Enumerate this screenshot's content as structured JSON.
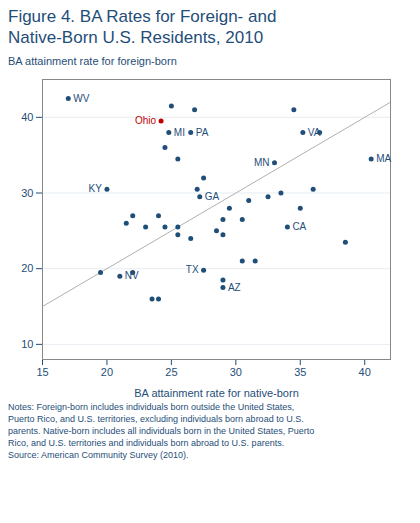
{
  "chart_data": {
    "type": "scatter",
    "title": "Figure 4. BA Rates for Foreign- and\nNative-Born U.S. Residents, 2010",
    "xlabel": "BA attainment rate for native-born",
    "ylabel": "BA attainment rate for foreign-born",
    "notes": "Notes: Foreign-born includes individuals born outside the United States,\nPuerto Rico, and U.S. territories, excluding individuals born abroad to U.S.\nparents. Native-born includes all individuals born in the United States, Puerto\nRico, and U.S. territories and individuals born abroad to U.S. parents.\nSource: American Community Survey (2010).",
    "xlim": [
      15,
      42
    ],
    "ylim": [
      8,
      45
    ],
    "xticks": [
      15,
      20,
      25,
      30,
      35,
      40
    ],
    "yticks": [
      10,
      20,
      30,
      40
    ],
    "grid": "y",
    "reference_line": {
      "x": [
        15,
        42
      ],
      "y": [
        15,
        42
      ],
      "color": "#b0b0b0"
    },
    "x": [
      17.0,
      24.2,
      24.8,
      26.5,
      20.0,
      21.0,
      27.2,
      27.5,
      29.0,
      33.0,
      34.0,
      35.2,
      40.5,
      25.0,
      26.8,
      34.5,
      22.0,
      24.0,
      21.5,
      23.0,
      24.5,
      25.5,
      24.5,
      25.5,
      25.5,
      26.5,
      27.5,
      28.5,
      29.0,
      29.0,
      29.5,
      30.5,
      30.5,
      31.0,
      31.5,
      33.5,
      35.0,
      36.0,
      38.5,
      19.5,
      22.0,
      23.5,
      24.0,
      29.0,
      32.5,
      36.5,
      27.0
    ],
    "values": [
      42.5,
      39.5,
      38.0,
      38.0,
      30.5,
      19.0,
      29.5,
      19.8,
      17.5,
      34.0,
      25.5,
      38.0,
      34.5,
      41.5,
      41.0,
      41.0,
      27.0,
      27.0,
      26.0,
      25.5,
      36.0,
      34.5,
      25.5,
      25.5,
      24.5,
      24.0,
      32.0,
      25.0,
      26.5,
      24.5,
      28.0,
      26.5,
      21.0,
      29.0,
      21.0,
      30.0,
      28.0,
      30.5,
      23.5,
      19.5,
      19.5,
      16.0,
      16.0,
      18.5,
      29.5,
      38.0,
      30.5
    ],
    "labels": [
      "WV",
      "Ohio",
      "MI",
      "PA",
      "KY",
      "NV",
      "GA",
      "TX",
      "AZ",
      "MN",
      "CA",
      "VA",
      "MA",
      null,
      null,
      null,
      null,
      null,
      null,
      null,
      null,
      null,
      null,
      null,
      null,
      null,
      null,
      null,
      null,
      null,
      null,
      null,
      null,
      null,
      null,
      null,
      null,
      null,
      null,
      null,
      null,
      null,
      null,
      null,
      null,
      null,
      null
    ],
    "colors": [
      "#1f4e79",
      "#c00000",
      "#1f4e79",
      "#1f4e79",
      "#1f4e79",
      "#1f4e79",
      "#1f4e79",
      "#1f4e79",
      "#1f4e79",
      "#1f4e79",
      "#1f4e79",
      "#1f4e79",
      "#1f4e79",
      "#1f4e79",
      "#1f4e79",
      "#1f4e79",
      "#1f4e79",
      "#1f4e79",
      "#1f4e79",
      "#1f4e79",
      "#1f4e79",
      "#1f4e79",
      "#1f4e79",
      "#1f4e79",
      "#1f4e79",
      "#1f4e79",
      "#1f4e79",
      "#1f4e79",
      "#1f4e79",
      "#1f4e79",
      "#1f4e79",
      "#1f4e79",
      "#1f4e79",
      "#1f4e79",
      "#1f4e79",
      "#1f4e79",
      "#1f4e79",
      "#1f4e79",
      "#1f4e79",
      "#1f4e79",
      "#1f4e79",
      "#1f4e79",
      "#1f4e79",
      "#1f4e79",
      "#1f4e79",
      "#1f4e79",
      "#1f4e79"
    ]
  }
}
